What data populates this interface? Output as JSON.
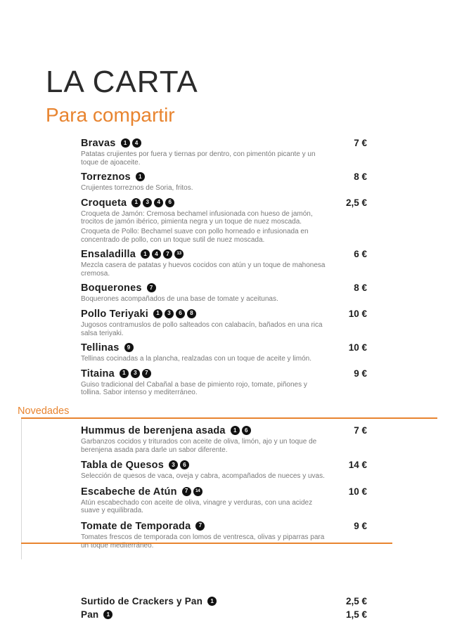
{
  "page": {
    "title": "LA CARTA",
    "subtitle": "Para compartir"
  },
  "colors": {
    "accent_orange": "#E8842F",
    "title_dark": "#2B2B2B",
    "item_name_black": "#1E1E1E",
    "description_gray": "#7A7A7A",
    "badge_black": "#121212"
  },
  "sections": {
    "main": {
      "items": [
        {
          "name": "Bravas",
          "allergens": [
            1,
            4
          ],
          "price": "7 €",
          "desc": [
            "Patatas crujientes por fuera y tiernas por dentro, con pimentón picante y un toque de ajoaceite."
          ]
        },
        {
          "name": "Torreznos",
          "allergens": [
            1
          ],
          "price": "8 €",
          "desc": [
            "Crujientes torreznos de Soria, fritos."
          ]
        },
        {
          "name": "Croqueta",
          "allergens": [
            1,
            3,
            4,
            6
          ],
          "price": "2,5 €",
          "desc": [
            "Croqueta de Jamón: Cremosa bechamel infusionada con hueso de jamón, trocitos de jamón ibérico, pimienta negra y un toque de nuez moscada.",
            "Croqueta de Pollo: Bechamel suave con pollo horneado e infusionada en concentrado de pollo, con un toque sutil de nuez moscada."
          ]
        },
        {
          "name": "Ensaladilla",
          "allergens": [
            1,
            4,
            7,
            13
          ],
          "price": "6 €",
          "desc": [
            "Mezcla casera de patatas y huevos cocidos con atún y un toque de mahonesa cremosa."
          ]
        },
        {
          "name": "Boquerones",
          "allergens": [
            7
          ],
          "price": "8 €",
          "desc": [
            "Boquerones acompañados de una base de tomate y aceitunas."
          ]
        },
        {
          "name": "Pollo Teriyaki",
          "allergens": [
            1,
            3,
            6,
            8
          ],
          "price": "10 €",
          "desc": [
            "Jugosos contramuslos de pollo salteados con calabacín, bañados en una rica salsa teriyaki."
          ]
        },
        {
          "name": "Tellinas",
          "allergens": [
            9
          ],
          "price": "10 €",
          "desc": [
            "Tellinas cocinadas a la plancha, realzadas con un toque de aceite y limón."
          ]
        },
        {
          "name": "Titaina",
          "allergens": [
            1,
            3,
            7
          ],
          "price": "9 €",
          "desc": [
            "Guiso tradicional del Cabañal a base de pimiento rojo, tomate, piñones y tollina. Sabor intenso y mediterráneo."
          ]
        }
      ]
    },
    "novedades": {
      "label": "Novedades",
      "items": [
        {
          "name": "Hummus de berenjena asada",
          "allergens": [
            1,
            6
          ],
          "price": "7 €",
          "desc": [
            "Garbanzos cocidos y triturados con aceite de oliva, limón, ajo y un toque de berenjena asada para darle un sabor diferente."
          ]
        },
        {
          "name": "Tabla de Quesos",
          "allergens": [
            3,
            6
          ],
          "price": "14 €",
          "desc": [
            "Selección de quesos de vaca, oveja y cabra, acompañados de nueces y uvas."
          ]
        },
        {
          "name": "Escabeche de Atún",
          "allergens": [
            7,
            14
          ],
          "price": "10 €",
          "desc": [
            "Atún escabechado con aceite de oliva, vinagre y verduras, con una acidez suave y equilibrada."
          ]
        },
        {
          "name": "Tomate de Temporada",
          "allergens": [
            7
          ],
          "price": "9 €",
          "desc": [
            "Tomates frescos de temporada con lomos de ventresca, olivas y piparras para un toque mediterráneo."
          ]
        }
      ]
    },
    "extras": {
      "items": [
        {
          "name": "Surtido de Crackers y Pan",
          "allergens": [
            1
          ],
          "price": "2,5 €",
          "desc": []
        },
        {
          "name": "Pan",
          "allergens": [
            1
          ],
          "price": "1,5 €",
          "desc": []
        }
      ]
    }
  }
}
